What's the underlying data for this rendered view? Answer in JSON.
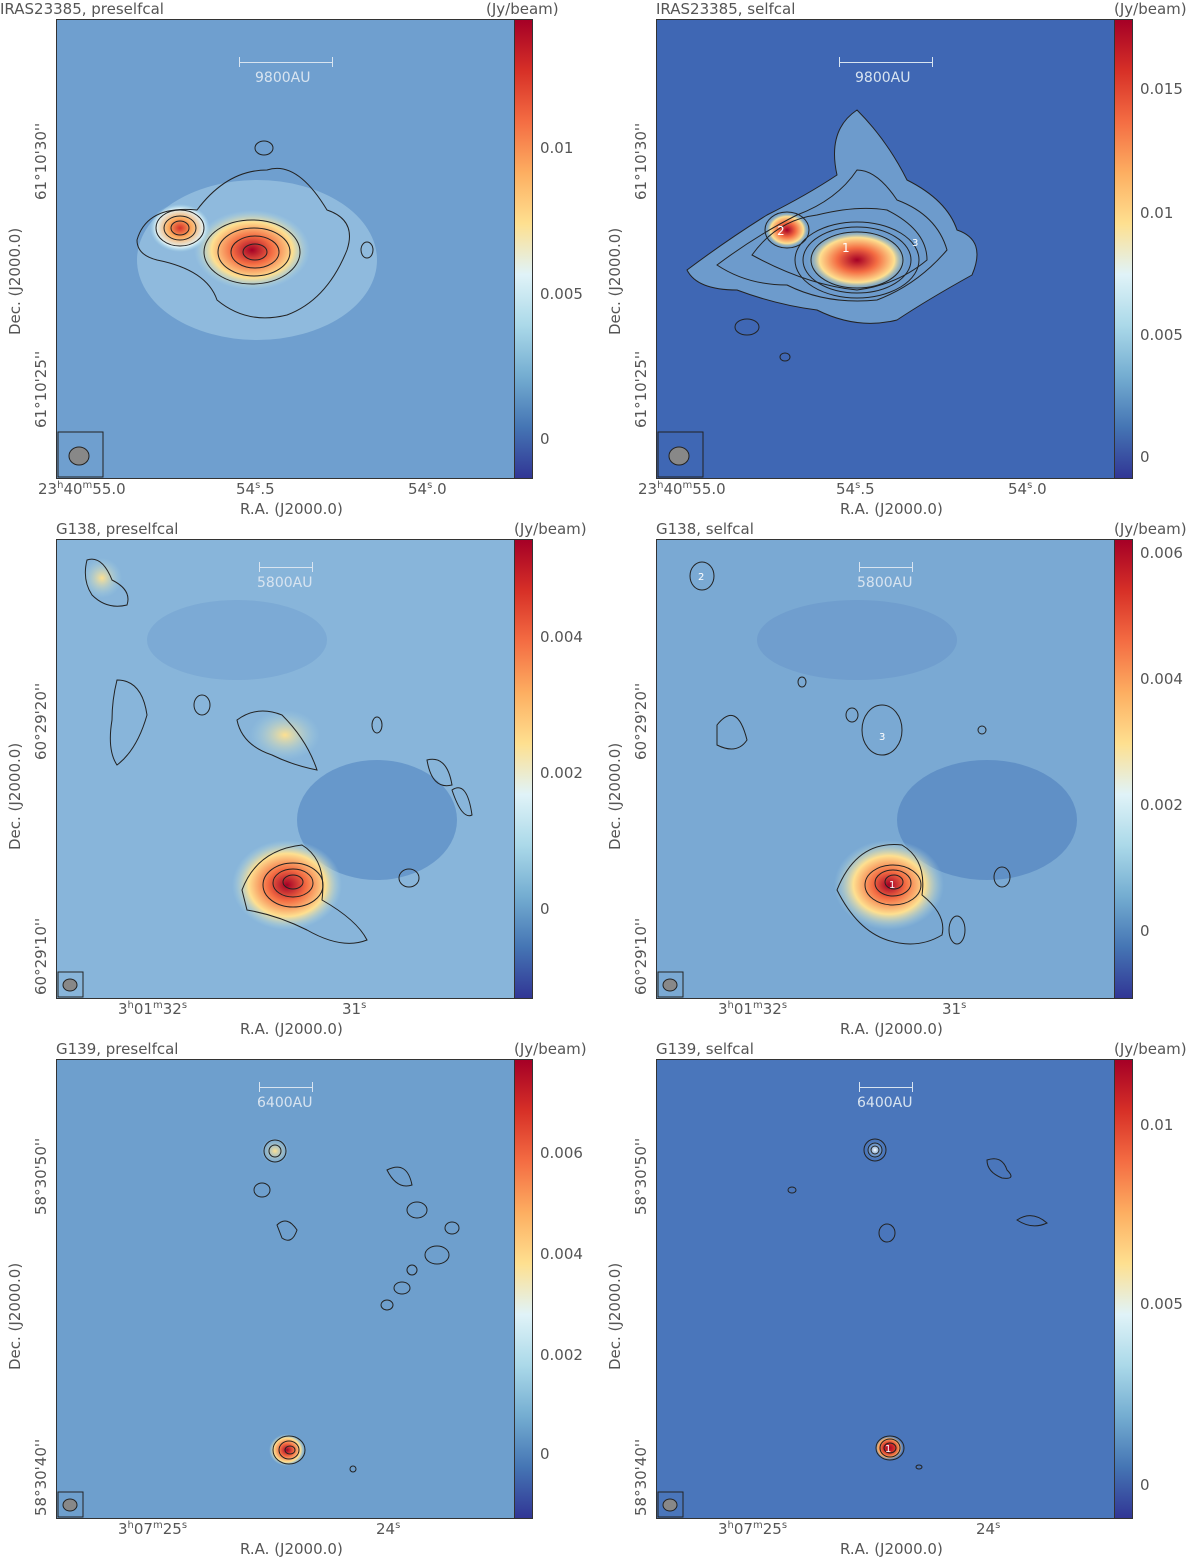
{
  "unit_label": "(Jy/beam)",
  "xlabel": "R.A. (J2000.0)",
  "ylabel": "Dec. (J2000.0)",
  "colormap": [
    "#313695",
    "#4575b4",
    "#74add1",
    "#abd9e9",
    "#e0f3f8",
    "#fee090",
    "#fdae61",
    "#f46d43",
    "#d73027",
    "#a50026"
  ],
  "panels": [
    {
      "title": "IRAS23385, preselfcal",
      "scale": "9800AU",
      "background": "#6f9fcf",
      "cbar_ticks": [
        "0.01",
        "0.005",
        "0"
      ],
      "xticks": [
        "23h40m55.0",
        "54s.5",
        "54s.0"
      ],
      "yticks": [
        "61°10'30''",
        "61°10'25''"
      ],
      "labels": []
    },
    {
      "title": "IRAS23385, selfcal",
      "scale": "9800AU",
      "background": "#3f67b4",
      "cbar_ticks": [
        "0.015",
        "0.01",
        "0.005",
        "0"
      ],
      "xticks": [
        "23h40m55.0",
        "54s.5",
        "54s.0"
      ],
      "yticks": [
        "61°10'30''",
        "61°10'25''"
      ],
      "labels": [
        "2",
        "1",
        "3"
      ]
    },
    {
      "title": "G138, preselfcal",
      "scale": "5800AU",
      "background": "#88b5da",
      "cbar_ticks": [
        "0.004",
        "0.002",
        "0"
      ],
      "xticks": [
        "3h01m32s",
        "31s"
      ],
      "yticks": [
        "60°29'20''",
        "60°29'10''"
      ],
      "labels": []
    },
    {
      "title": "G138, selfcal",
      "scale": "5800AU",
      "background": "#7aa9d3",
      "cbar_ticks": [
        "0.006",
        "0.004",
        "0.002",
        "0"
      ],
      "xticks": [
        "3h01m32s",
        "31s"
      ],
      "yticks": [
        "60°29'20''",
        "60°29'10''"
      ],
      "labels": [
        "2",
        "3",
        "1"
      ]
    },
    {
      "title": "G139, preselfcal",
      "scale": "6400AU",
      "background": "#6e9fcd",
      "cbar_ticks": [
        "0.006",
        "0.004",
        "0.002",
        "0"
      ],
      "xticks": [
        "3h07m25s",
        "24s"
      ],
      "yticks": [
        "58°30'50''",
        "58°30'40''"
      ],
      "labels": []
    },
    {
      "title": "G139, selfcal",
      "scale": "6400AU",
      "background": "#4a76bb",
      "cbar_ticks": [
        "0.01",
        "0.005",
        "0"
      ],
      "xticks": [
        "3h07m25s",
        "24s"
      ],
      "yticks": [
        "58°30'50''",
        "58°30'40''"
      ],
      "labels": [
        "1"
      ]
    }
  ]
}
